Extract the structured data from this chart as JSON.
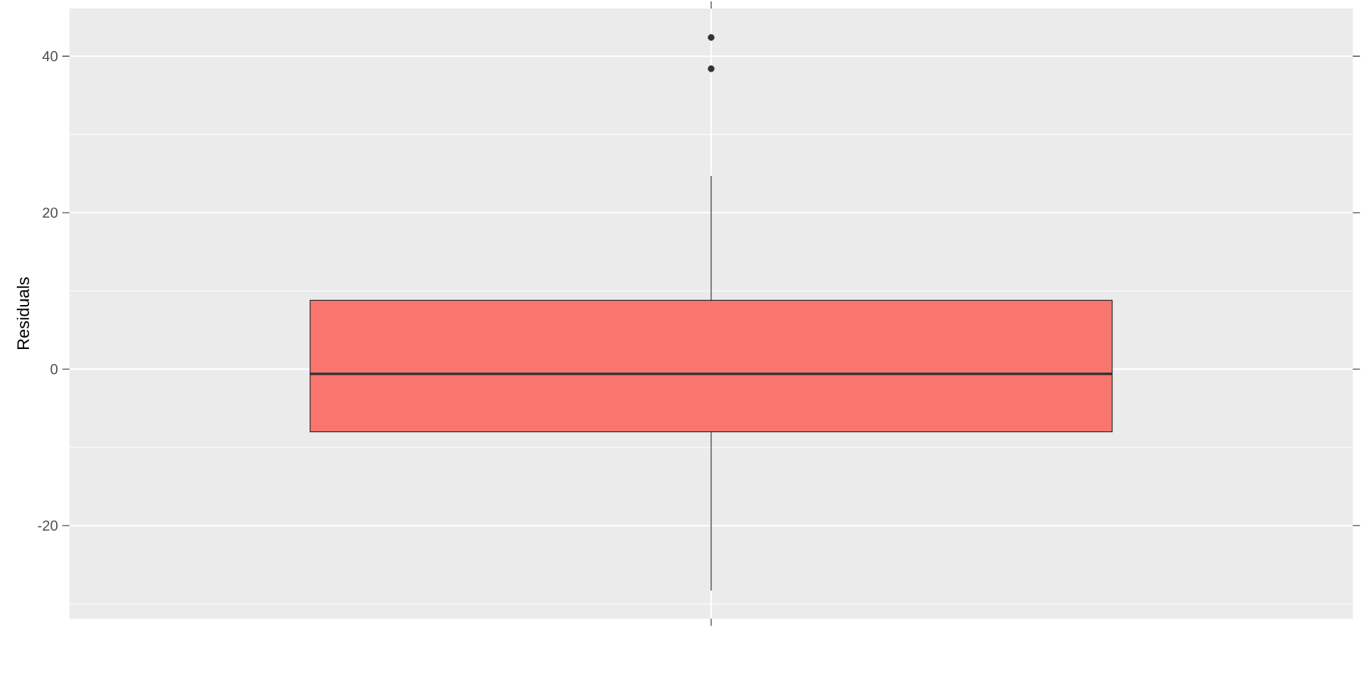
{
  "chart_data": {
    "type": "box",
    "ylabel": "Residuals",
    "categories": [
      null
    ],
    "series": [
      {
        "color": "#f8766d",
        "boxes": [
          {
            "low": -28.3,
            "q1": -8.0,
            "median": -0.6,
            "q3": 8.8,
            "high": 24.7,
            "outliers": [
              42.4,
              38.4
            ]
          }
        ]
      }
    ],
    "ylim": [
      -31.9,
      46.1
    ],
    "yticks": [
      -20,
      0,
      20,
      40
    ],
    "grid": true
  }
}
